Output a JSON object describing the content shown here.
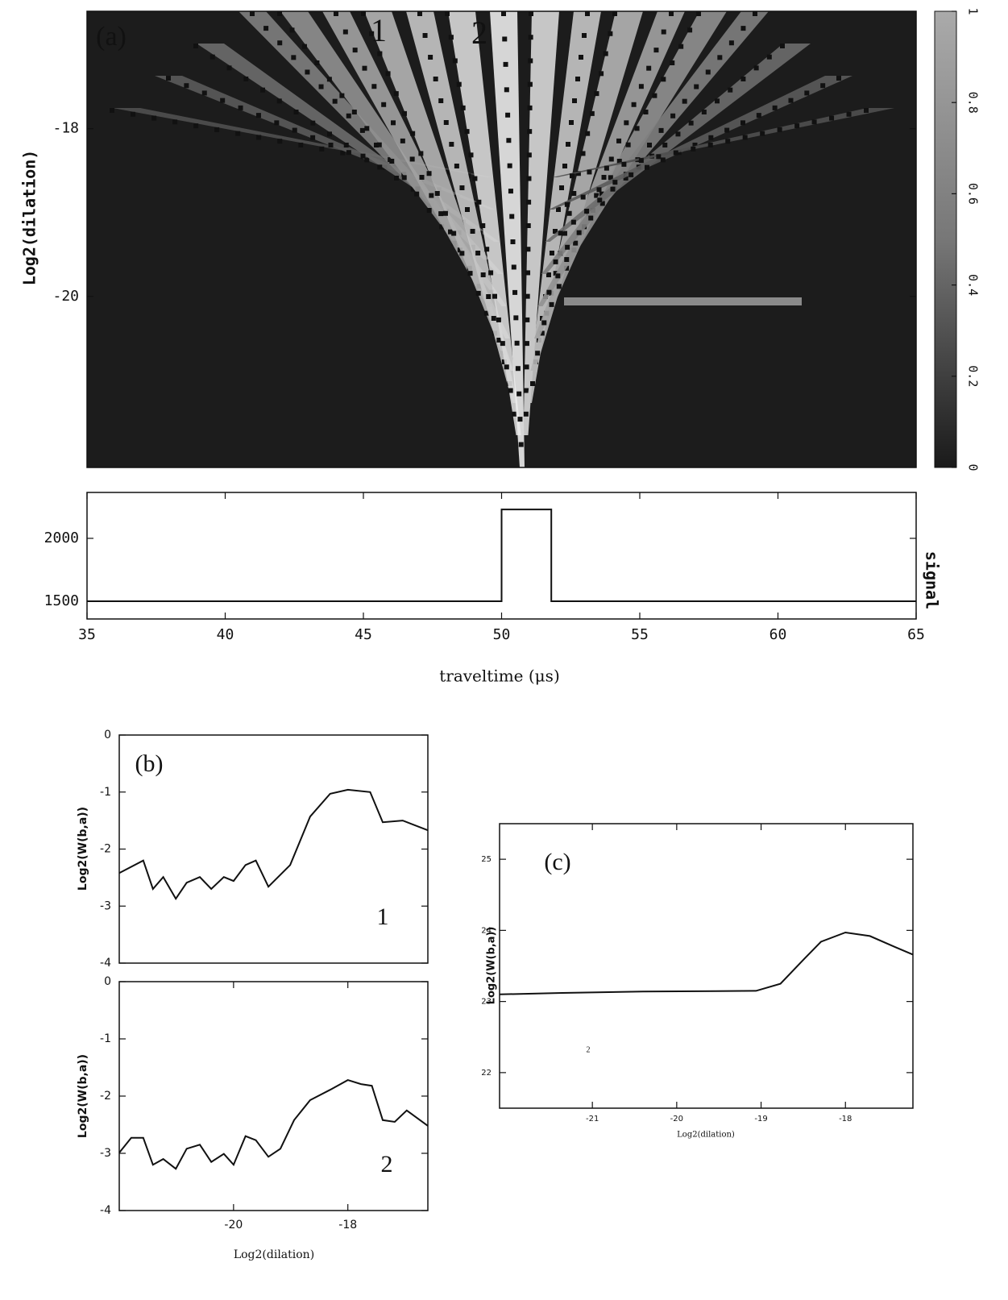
{
  "chart_data": [
    {
      "type": "heatmap",
      "ylabel": "Log2(dilation)",
      "xlim": [
        35,
        65
      ],
      "ylim": [
        -22.04,
        -16.6
      ],
      "yticks": [
        -18,
        -20
      ],
      "annotations": [
        "(a)",
        "1",
        "2"
      ],
      "colorbar": {
        "lim": [
          0,
          1
        ],
        "ticks": [
          0,
          0.2,
          0.4,
          0.6,
          0.8,
          1
        ]
      }
    },
    {
      "type": "line",
      "xlabel": "traveltime (μs)",
      "ylabel": "signal",
      "xlim": [
        35,
        65
      ],
      "ylim": [
        1359,
        2365
      ],
      "xticks": [
        35,
        40,
        45,
        50,
        55,
        60,
        65
      ],
      "yticks": [
        1500,
        2000
      ],
      "color": "#111111",
      "x": [
        35,
        50,
        50,
        51.8,
        51.8,
        65
      ],
      "values": [
        1500,
        1500,
        2230,
        2230,
        1500,
        1500
      ]
    },
    {
      "type": "line",
      "ylabel": "Log2(W(b,a))",
      "xlim": [
        -22,
        -16.6
      ],
      "ylim": [
        -4,
        0
      ],
      "yticks": [
        0,
        -1,
        -2,
        -3,
        -4
      ],
      "annotations": [
        "(b)",
        "1"
      ],
      "color": "#111111",
      "x": [
        -22,
        -21.58,
        -21.41,
        -21.23,
        -21.01,
        -20.82,
        -20.59,
        -20.39,
        -20.17,
        -20.0,
        -19.79,
        -19.61,
        -19.39,
        -19.01,
        -18.66,
        -18.31,
        -18.0,
        -17.61,
        -17.39,
        -17.04,
        -16.6
      ],
      "values": [
        -2.42,
        -2.2,
        -2.7,
        -2.49,
        -2.87,
        -2.59,
        -2.49,
        -2.7,
        -2.49,
        -2.56,
        -2.28,
        -2.2,
        -2.66,
        -2.28,
        -1.43,
        -1.03,
        -0.96,
        -1.0,
        -1.53,
        -1.5,
        -1.67
      ]
    },
    {
      "type": "line",
      "xlabel": "Log2(dilation)",
      "ylabel": "Log2(W(b,a))",
      "xlim": [
        -22,
        -16.6
      ],
      "ylim": [
        -4,
        0
      ],
      "xticks": [
        -20,
        -18
      ],
      "yticks": [
        0,
        -1,
        -2,
        -3,
        -4
      ],
      "annotations": [
        "2"
      ],
      "color": "#111111",
      "x": [
        -22,
        -21.79,
        -21.58,
        -21.41,
        -21.23,
        -21.01,
        -20.82,
        -20.59,
        -20.39,
        -20.17,
        -20.0,
        -19.79,
        -19.61,
        -19.39,
        -19.18,
        -18.94,
        -18.66,
        -18.31,
        -18.0,
        -17.77,
        -17.58,
        -17.39,
        -17.18,
        -16.97,
        -16.6
      ],
      "values": [
        -2.99,
        -2.73,
        -2.73,
        -3.2,
        -3.1,
        -3.27,
        -2.92,
        -2.85,
        -3.15,
        -3.01,
        -3.2,
        -2.7,
        -2.77,
        -3.06,
        -2.92,
        -2.42,
        -2.07,
        -1.89,
        -1.72,
        -1.79,
        -1.82,
        -2.42,
        -2.45,
        -2.25,
        -2.52
      ]
    },
    {
      "type": "line",
      "xlabel": "Log2(dilation)",
      "ylabel": "Log2(W(b,a))",
      "xlim": [
        -22.1,
        -17.2
      ],
      "ylim": [
        21.5,
        25.5
      ],
      "xticks": [
        -21,
        -20,
        -19,
        -18
      ],
      "yticks": [
        22,
        23,
        24,
        25
      ],
      "annotations": [
        "(c)",
        "2"
      ],
      "color": "#111111",
      "x": [
        -22.1,
        -21.36,
        -20.4,
        -19.06,
        -18.77,
        -18.48,
        -18.29,
        -18.0,
        -17.71,
        -17.42,
        -17.2
      ],
      "values": [
        23.1,
        23.12,
        23.14,
        23.15,
        23.25,
        23.61,
        23.84,
        23.97,
        23.92,
        23.77,
        23.66
      ]
    }
  ]
}
